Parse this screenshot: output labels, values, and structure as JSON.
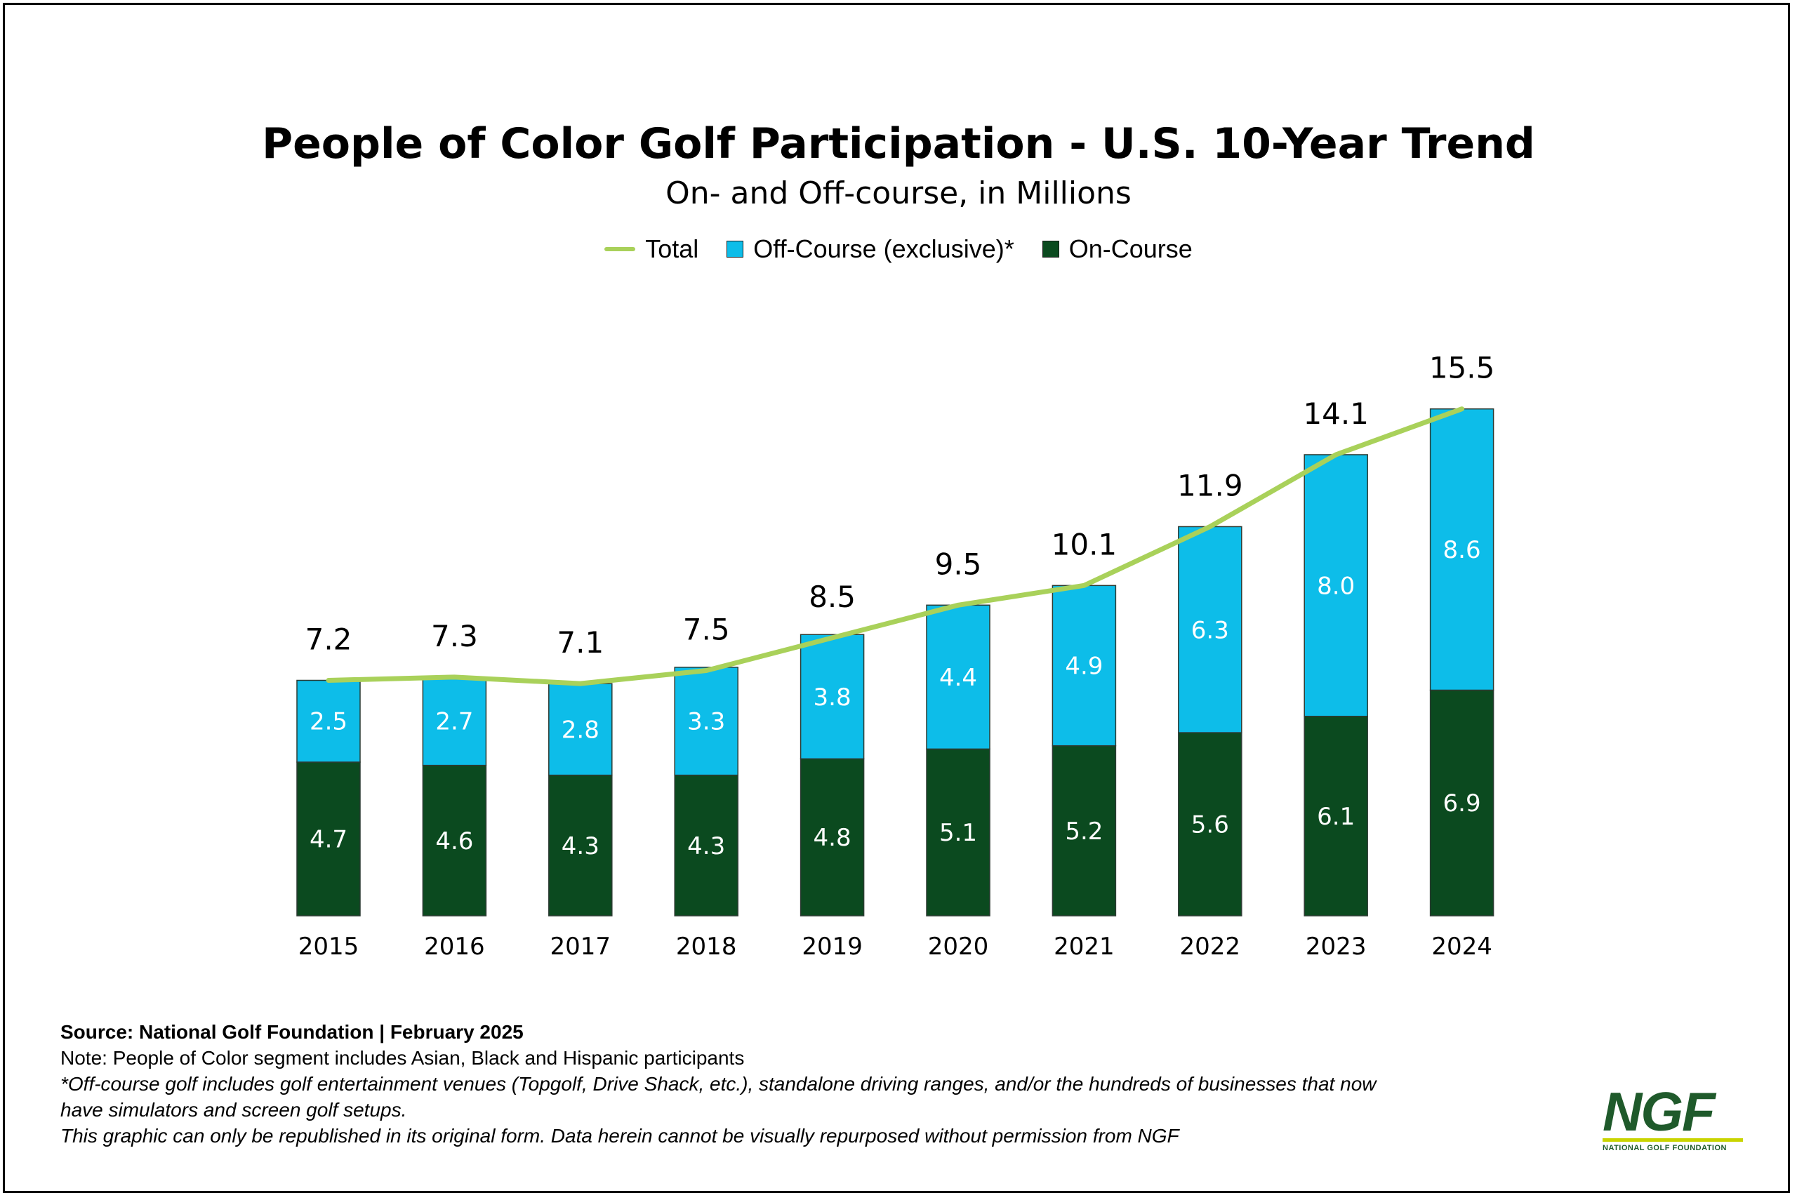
{
  "chart_data": {
    "type": "bar",
    "stacked": true,
    "title": "People of Color Golf Participation - U.S. 10-Year Trend",
    "subtitle": "On- and Off-course, in Millions",
    "categories": [
      "2015",
      "2016",
      "2017",
      "2018",
      "2019",
      "2020",
      "2021",
      "2022",
      "2023",
      "2024"
    ],
    "series": [
      {
        "name": "On-Course",
        "values": [
          4.7,
          4.6,
          4.3,
          4.3,
          4.8,
          5.1,
          5.2,
          5.6,
          6.1,
          6.9
        ],
        "color": "#0b4a1f"
      },
      {
        "name": "Off-Course (exclusive)*",
        "values": [
          2.5,
          2.7,
          2.8,
          3.3,
          3.8,
          4.4,
          4.9,
          6.3,
          8.0,
          8.6
        ],
        "color": "#0dbde9"
      },
      {
        "name": "Total",
        "type": "line",
        "values": [
          7.2,
          7.3,
          7.1,
          7.5,
          8.5,
          9.5,
          10.1,
          11.9,
          14.1,
          15.5
        ],
        "color": "#a9d15a"
      }
    ],
    "legend": {
      "position": "top-center",
      "order": [
        "Total",
        "Off-Course (exclusive)*",
        "On-Course"
      ]
    },
    "ylim": [
      0,
      15.5
    ],
    "grid": false,
    "y_axis_visible": false
  },
  "footer": {
    "source": "Source: National Golf Foundation | February 2025",
    "note": "Note: People of Color segment includes Asian, Black and Hispanic participants",
    "footnote_line1": "*Off-course golf includes golf entertainment venues (Topgolf, Drive Shack, etc.), standalone driving ranges, and/or the hundreds of businesses that now",
    "footnote_line2": "have simulators and screen golf setups.",
    "disclaimer": "This graphic can only be republished in its original form. Data herein cannot be visually repurposed without permission from NGF"
  },
  "logo": {
    "mark": "NGF",
    "text": "NATIONAL GOLF FOUNDATION"
  }
}
